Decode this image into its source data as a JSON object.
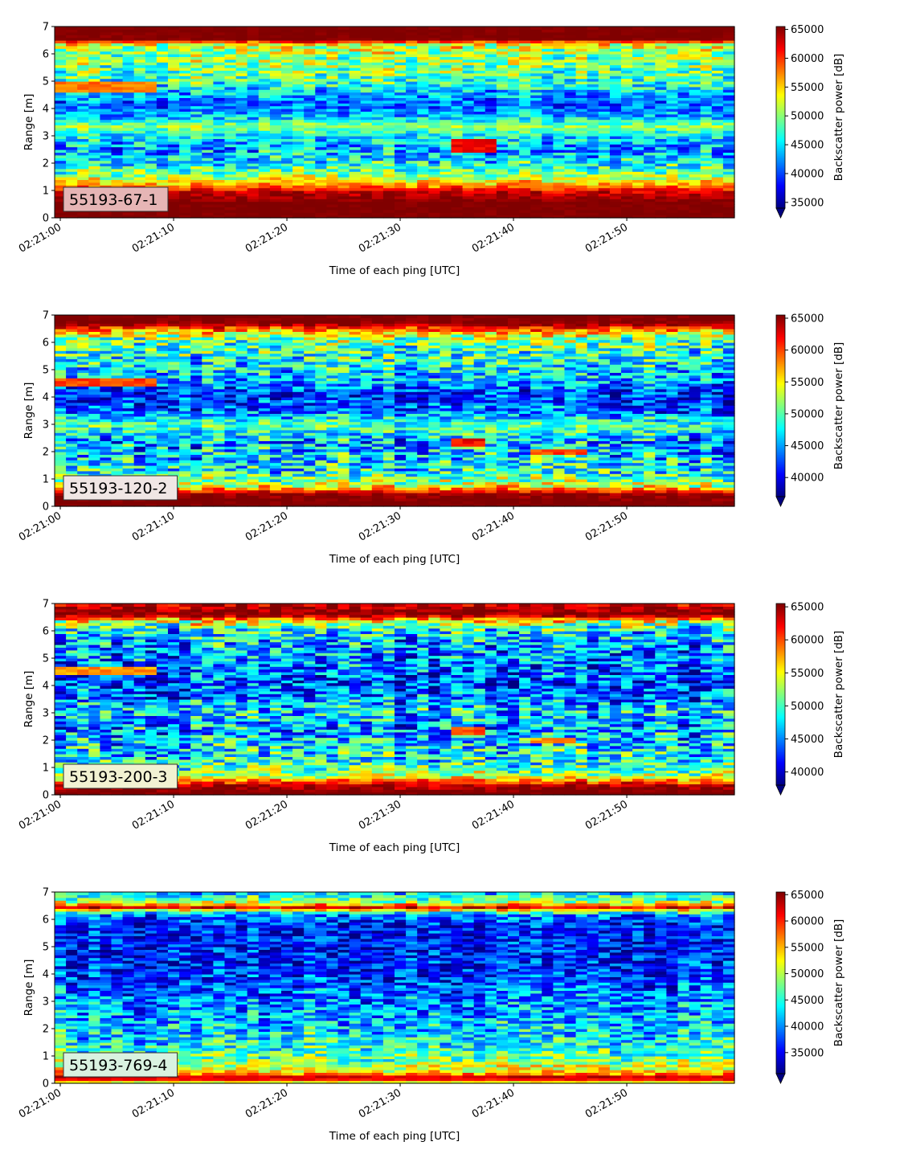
{
  "chart_data": [
    {
      "type": "heatmap",
      "label": "55193-67-1",
      "xlabel": "Time of each ping [UTC]",
      "ylabel": "Range [m]",
      "xticks": [
        "02:21:00",
        "02:21:10",
        "02:21:20",
        "02:21:30",
        "02:21:40",
        "02:21:50"
      ],
      "xlim": [
        "02:20:59.5",
        "02:21:59.5"
      ],
      "yticks": [
        0,
        1,
        2,
        3,
        4,
        5,
        6,
        7
      ],
      "ylim": [
        0,
        7
      ],
      "colorbar": {
        "label": "Backscatter power [dB]",
        "ticks": [
          35000,
          40000,
          45000,
          50000,
          55000,
          60000,
          65000
        ],
        "vmin": 34000,
        "vmax": 65500,
        "extend": "min"
      },
      "colormap": "jet",
      "label_box_color": "#e6b5b5",
      "profile": [
        {
          "range": 0.25,
          "mean": 65500,
          "spread": 600
        },
        {
          "range": 0.55,
          "mean": 65500,
          "spread": 600
        },
        {
          "range": 0.95,
          "mean": 63000,
          "spread": 2500
        },
        {
          "range": 1.25,
          "mean": 56000,
          "spread": 3500
        },
        {
          "range": 1.6,
          "mean": 49500,
          "spread": 5000
        },
        {
          "range": 2.1,
          "mean": 45500,
          "spread": 6000
        },
        {
          "range": 2.6,
          "mean": 42500,
          "spread": 6000
        },
        {
          "range": 3.05,
          "mean": 46000,
          "spread": 4000
        },
        {
          "range": 3.35,
          "mean": 50500,
          "spread": 3000
        },
        {
          "range": 3.7,
          "mean": 44000,
          "spread": 4500
        },
        {
          "range": 4.1,
          "mean": 40500,
          "spread": 4000
        },
        {
          "range": 4.5,
          "mean": 43000,
          "spread": 5000
        },
        {
          "range": 5.0,
          "mean": 47500,
          "spread": 5500
        },
        {
          "range": 5.5,
          "mean": 49500,
          "spread": 5500
        },
        {
          "range": 6.0,
          "mean": 50500,
          "spread": 5500
        },
        {
          "range": 6.35,
          "mean": 53000,
          "spread": 6000
        },
        {
          "range": 6.55,
          "mean": 65500,
          "spread": 800
        },
        {
          "range": 6.95,
          "mean": 65500,
          "spread": 600
        }
      ],
      "features": [
        {
          "t0": 0,
          "t1": 8,
          "r0": 4.6,
          "r1": 5.0,
          "value": 58000
        },
        {
          "t0": 35,
          "t1": 38,
          "r0": 2.4,
          "r1": 2.9,
          "value": 62000
        }
      ]
    },
    {
      "type": "heatmap",
      "label": "55193-120-2",
      "xlabel": "Time of each ping [UTC]",
      "ylabel": "Range [m]",
      "xticks": [
        "02:21:00",
        "02:21:10",
        "02:21:20",
        "02:21:30",
        "02:21:40",
        "02:21:50"
      ],
      "xlim": [
        "02:20:59.5",
        "02:21:59.5"
      ],
      "yticks": [
        0,
        1,
        2,
        3,
        4,
        5,
        6,
        7
      ],
      "ylim": [
        0,
        7
      ],
      "colorbar": {
        "label": "Backscatter power [dB]",
        "ticks": [
          40000,
          45000,
          50000,
          55000,
          60000,
          65000
        ],
        "vmin": 37000,
        "vmax": 65500,
        "extend": "min"
      },
      "colormap": "jet",
      "label_box_color": "#f0e6e4",
      "profile": [
        {
          "range": 0.15,
          "mean": 65500,
          "spread": 600
        },
        {
          "range": 0.45,
          "mean": 65000,
          "spread": 1500
        },
        {
          "range": 0.75,
          "mean": 54000,
          "spread": 5000
        },
        {
          "range": 1.2,
          "mean": 48500,
          "spread": 6000
        },
        {
          "range": 1.8,
          "mean": 46500,
          "spread": 6500
        },
        {
          "range": 2.4,
          "mean": 45000,
          "spread": 6500
        },
        {
          "range": 3.0,
          "mean": 50000,
          "spread": 4000
        },
        {
          "range": 3.5,
          "mean": 43000,
          "spread": 5500
        },
        {
          "range": 4.1,
          "mean": 41500,
          "spread": 5000
        },
        {
          "range": 4.6,
          "mean": 45000,
          "spread": 5500
        },
        {
          "range": 5.1,
          "mean": 47000,
          "spread": 6000
        },
        {
          "range": 5.6,
          "mean": 48500,
          "spread": 6000
        },
        {
          "range": 6.1,
          "mean": 50500,
          "spread": 6000
        },
        {
          "range": 6.4,
          "mean": 56000,
          "spread": 5000
        },
        {
          "range": 6.7,
          "mean": 65500,
          "spread": 1500
        },
        {
          "range": 6.95,
          "mean": 65500,
          "spread": 800
        }
      ],
      "features": [
        {
          "t0": 0,
          "t1": 8,
          "r0": 4.4,
          "r1": 4.7,
          "value": 60000
        },
        {
          "t0": 35,
          "t1": 37,
          "r0": 2.2,
          "r1": 2.5,
          "value": 62000
        },
        {
          "t0": 42,
          "t1": 46,
          "r0": 1.9,
          "r1": 2.1,
          "value": 60000
        }
      ]
    },
    {
      "type": "heatmap",
      "label": "55193-200-3",
      "xlabel": "Time of each ping [UTC]",
      "ylabel": "Range [m]",
      "xticks": [
        "02:21:00",
        "02:21:10",
        "02:21:20",
        "02:21:30",
        "02:21:40",
        "02:21:50"
      ],
      "xlim": [
        "02:20:59.5",
        "02:21:59.5"
      ],
      "yticks": [
        0,
        1,
        2,
        3,
        4,
        5,
        6,
        7
      ],
      "ylim": [
        0,
        7
      ],
      "colorbar": {
        "label": "Backscatter power [dB]",
        "ticks": [
          40000,
          45000,
          50000,
          55000,
          60000,
          65000
        ],
        "vmin": 38000,
        "vmax": 65500,
        "extend": "min"
      },
      "colormap": "jet",
      "label_box_color": "#f2f2d2",
      "profile": [
        {
          "range": 0.1,
          "mean": 65500,
          "spread": 800
        },
        {
          "range": 0.35,
          "mean": 64000,
          "spread": 2500
        },
        {
          "range": 0.7,
          "mean": 53000,
          "spread": 5000
        },
        {
          "range": 1.2,
          "mean": 48500,
          "spread": 6000
        },
        {
          "range": 1.8,
          "mean": 47000,
          "spread": 6500
        },
        {
          "range": 2.5,
          "mean": 45500,
          "spread": 6500
        },
        {
          "range": 3.1,
          "mean": 47500,
          "spread": 6000
        },
        {
          "range": 3.6,
          "mean": 44000,
          "spread": 6000
        },
        {
          "range": 4.2,
          "mean": 43000,
          "spread": 6000
        },
        {
          "range": 4.8,
          "mean": 44500,
          "spread": 6000
        },
        {
          "range": 5.4,
          "mean": 45500,
          "spread": 6500
        },
        {
          "range": 6.0,
          "mean": 47500,
          "spread": 6500
        },
        {
          "range": 6.35,
          "mean": 54000,
          "spread": 6000
        },
        {
          "range": 6.6,
          "mean": 65500,
          "spread": 1500
        },
        {
          "range": 6.95,
          "mean": 63000,
          "spread": 3000
        }
      ],
      "features": [
        {
          "t0": 0,
          "t1": 8,
          "r0": 4.4,
          "r1": 4.7,
          "value": 58000
        },
        {
          "t0": 35,
          "t1": 37,
          "r0": 2.2,
          "r1": 2.5,
          "value": 60000
        },
        {
          "t0": 42,
          "t1": 45,
          "r0": 1.9,
          "r1": 2.1,
          "value": 58000
        }
      ]
    },
    {
      "type": "heatmap",
      "label": "55193-769-4",
      "xlabel": "Time of each ping [UTC]",
      "ylabel": "Range [m]",
      "xticks": [
        "02:21:00",
        "02:21:10",
        "02:21:20",
        "02:21:30",
        "02:21:40",
        "02:21:50"
      ],
      "xlim": [
        "02:20:59.5",
        "02:21:59.5"
      ],
      "yticks": [
        0,
        1,
        2,
        3,
        4,
        5,
        6,
        7
      ],
      "ylim": [
        0,
        7
      ],
      "colorbar": {
        "label": "Backscatter power [dB]",
        "ticks": [
          35000,
          40000,
          45000,
          50000,
          55000,
          60000,
          65000
        ],
        "vmin": 31000,
        "vmax": 65500,
        "extend": "min"
      },
      "colormap": "jet",
      "label_box_color": "#d9f2e0",
      "profile": [
        {
          "range": 0.05,
          "mean": 52000,
          "spread": 2000
        },
        {
          "range": 0.2,
          "mean": 65500,
          "spread": 1000
        },
        {
          "range": 0.4,
          "mean": 54000,
          "spread": 5000
        },
        {
          "range": 0.9,
          "mean": 47500,
          "spread": 6000
        },
        {
          "range": 1.6,
          "mean": 44000,
          "spread": 6500
        },
        {
          "range": 2.4,
          "mean": 41500,
          "spread": 6500
        },
        {
          "range": 3.2,
          "mean": 39500,
          "spread": 6500
        },
        {
          "range": 4.0,
          "mean": 37000,
          "spread": 6000
        },
        {
          "range": 5.0,
          "mean": 36000,
          "spread": 5500
        },
        {
          "range": 5.8,
          "mean": 36500,
          "spread": 5500
        },
        {
          "range": 6.2,
          "mean": 40000,
          "spread": 6000
        },
        {
          "range": 6.45,
          "mean": 62000,
          "spread": 4000
        },
        {
          "range": 6.65,
          "mean": 50000,
          "spread": 6000
        },
        {
          "range": 6.95,
          "mean": 43000,
          "spread": 6000
        }
      ],
      "features": []
    }
  ]
}
